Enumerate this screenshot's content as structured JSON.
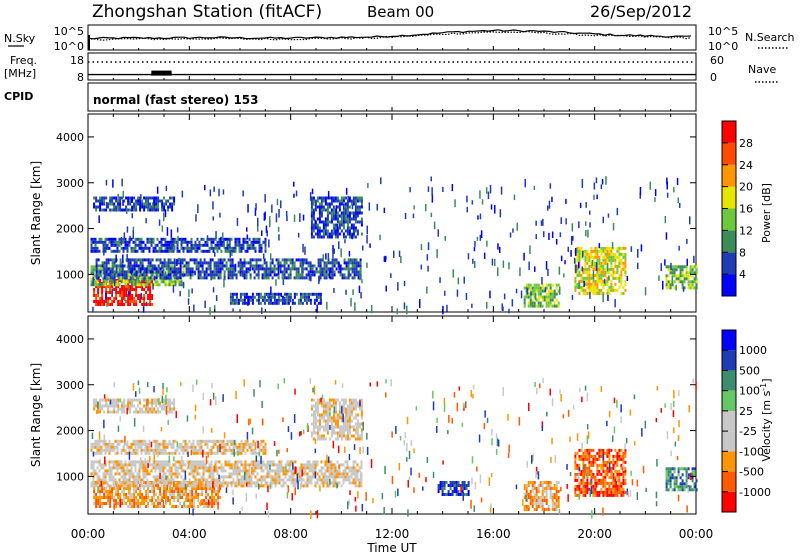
{
  "header": {
    "station": "Zhongshan Station (fitACF)",
    "beam": "Beam 00",
    "date": "26/Sep/2012"
  },
  "side_labels": {
    "nsky": "N.Sky",
    "freq": "Freq.",
    "mhz": "[MHz]",
    "cpid": "CPID",
    "nsearch": "N.Search",
    "nave": "Nave"
  },
  "cpid_text": "normal (fast stereo) 153",
  "colors": {
    "power": [
      "#0000ff",
      "#1e3cb4",
      "#3c8c5a",
      "#6ec83c",
      "#e6e600",
      "#ff9600",
      "#ff4b00",
      "#ff0000"
    ],
    "velocity": [
      "#ff0000",
      "#ff5a00",
      "#ff9600",
      "#c8c8c8",
      "#c8c8c8",
      "#64c864",
      "#3c8c6e",
      "#1e3cb4",
      "#0000ff"
    ]
  },
  "chart_data": [
    {
      "type": "line",
      "panel": "noise",
      "left_ticks": [
        "10^5",
        "10^0"
      ],
      "right_ticks": [
        "10^5",
        "10^0"
      ],
      "x_ticks": [
        "00:00",
        "04:00",
        "08:00",
        "12:00",
        "16:00",
        "20:00",
        "00:00"
      ],
      "series": [
        {
          "values": [
            2.3,
            2.4,
            2.4,
            2.5,
            2.4,
            2.4,
            2.5,
            2.6,
            3.0,
            3.6,
            3.9,
            3.8,
            3.4,
            3.0,
            2.8,
            2.6
          ]
        },
        {
          "values": [
            2.1,
            2.2,
            2.2,
            2.3,
            2.2,
            2.2,
            2.3,
            2.4,
            2.8,
            3.3,
            3.6,
            3.5,
            3.1,
            2.8,
            2.6,
            2.4
          ]
        }
      ],
      "x_hours": [
        0,
        1.6,
        3.2,
        4.8,
        6.4,
        8.0,
        9.6,
        11.2,
        12.8,
        14.4,
        16.0,
        17.6,
        19.2,
        20.8,
        22.4,
        24.0
      ],
      "ylim": [
        0,
        5
      ]
    },
    {
      "type": "scatter",
      "panel": "frequency-nave",
      "left_ticks": [
        "18",
        "8"
      ],
      "right_ticks": [
        "60",
        "0"
      ],
      "freq_mhz": 10.0,
      "nave_dotted": 40,
      "ylim_freq": [
        8,
        18
      ],
      "ylim_nave": [
        0,
        60
      ]
    },
    {
      "type": "heatmap",
      "panel": "power",
      "ylabel": "Slant Range [km]",
      "colorbar_label": "Power [dB]",
      "colorbar_ticks": [
        "28",
        "24",
        "20",
        "16",
        "12",
        "8",
        "4"
      ],
      "y_ticks": [
        "4000",
        "3000",
        "2000",
        "1000"
      ],
      "ylim": [
        180,
        4500
      ],
      "xlim": [
        0,
        24
      ],
      "x_ticks": [
        "00:00",
        "04:00",
        "08:00",
        "12:00",
        "16:00",
        "20:00",
        "00:00"
      ],
      "regions": [
        {
          "t0": 0.2,
          "t1": 2.5,
          "r0": 320,
          "r1": 900,
          "level": 7
        },
        {
          "t0": 0.1,
          "t1": 3.8,
          "r0": 800,
          "r1": 1200,
          "level": 3
        },
        {
          "t0": 0.3,
          "t1": 10.8,
          "r0": 900,
          "r1": 1350,
          "level": 1
        },
        {
          "t0": 0.1,
          "t1": 7.0,
          "r0": 1500,
          "r1": 1800,
          "level": 1
        },
        {
          "t0": 0.2,
          "t1": 3.4,
          "r0": 2400,
          "r1": 2700,
          "level": 1
        },
        {
          "t0": 5.6,
          "t1": 9.2,
          "r0": 400,
          "r1": 600,
          "level": 1
        },
        {
          "t0": 8.8,
          "t1": 10.8,
          "r0": 1800,
          "r1": 2700,
          "level": 1
        },
        {
          "t0": 17.2,
          "t1": 18.6,
          "r0": 300,
          "r1": 800,
          "level": 3
        },
        {
          "t0": 19.2,
          "t1": 21.2,
          "r0": 600,
          "r1": 1600,
          "level": 4
        },
        {
          "t0": 22.8,
          "t1": 24.0,
          "r0": 700,
          "r1": 1200,
          "level": 3
        }
      ]
    },
    {
      "type": "heatmap",
      "panel": "velocity",
      "ylabel": "Slant Range [km]",
      "xlabel": "Time UT",
      "colorbar_label": "Velocity [m s",
      "colorbar_label_sup": "-1",
      "colorbar_ticks": [
        "1000",
        "500",
        "100",
        "25",
        "-25",
        "-100",
        "-500",
        "-1000"
      ],
      "y_ticks": [
        "4000",
        "3000",
        "2000",
        "1000"
      ],
      "ylim": [
        180,
        4500
      ],
      "xlim": [
        0,
        24
      ],
      "x_ticks": [
        "00:00",
        "04:00",
        "08:00",
        "12:00",
        "16:00",
        "20:00",
        "00:00"
      ],
      "regions": [
        {
          "t0": 0.2,
          "t1": 5.2,
          "r0": 320,
          "r1": 900,
          "level": 2
        },
        {
          "t0": 0.1,
          "t1": 10.8,
          "r0": 800,
          "r1": 1350,
          "level": 3
        },
        {
          "t0": 0.1,
          "t1": 7.0,
          "r0": 1500,
          "r1": 1800,
          "level": 3
        },
        {
          "t0": 0.2,
          "t1": 3.4,
          "r0": 2400,
          "r1": 2700,
          "level": 3
        },
        {
          "t0": 8.8,
          "t1": 10.8,
          "r0": 1800,
          "r1": 2700,
          "level": 3
        },
        {
          "t0": 13.8,
          "t1": 15.0,
          "r0": 600,
          "r1": 900,
          "level": 7
        },
        {
          "t0": 17.2,
          "t1": 18.6,
          "r0": 300,
          "r1": 900,
          "level": 2
        },
        {
          "t0": 19.2,
          "t1": 21.2,
          "r0": 600,
          "r1": 1600,
          "level": 1
        },
        {
          "t0": 22.8,
          "t1": 24.0,
          "r0": 700,
          "r1": 1200,
          "level": 6
        }
      ]
    }
  ]
}
